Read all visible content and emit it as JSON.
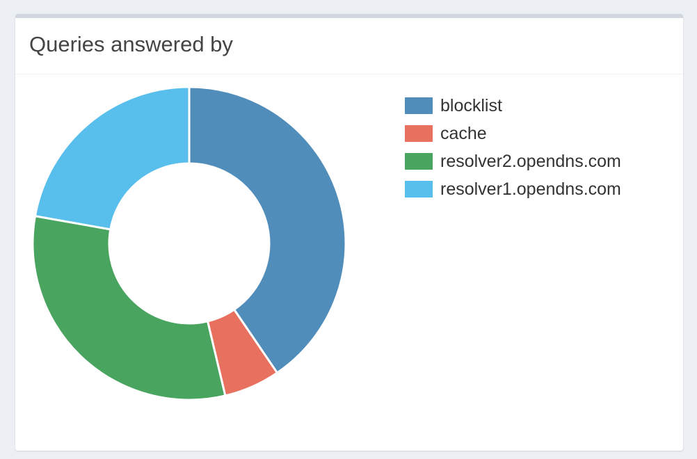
{
  "card": {
    "title": "Queries answered by"
  },
  "chart_data": {
    "type": "pie",
    "donut": true,
    "legend_position": "right",
    "categories": [
      "blocklist",
      "cache",
      "resolver2.opendns.com",
      "resolver1.opendns.com"
    ],
    "values": [
      40.5,
      5.8,
      31.5,
      22.2
    ],
    "colors": [
      "#508dba",
      "#e8705e",
      "#49a460",
      "#58bfed"
    ]
  }
}
